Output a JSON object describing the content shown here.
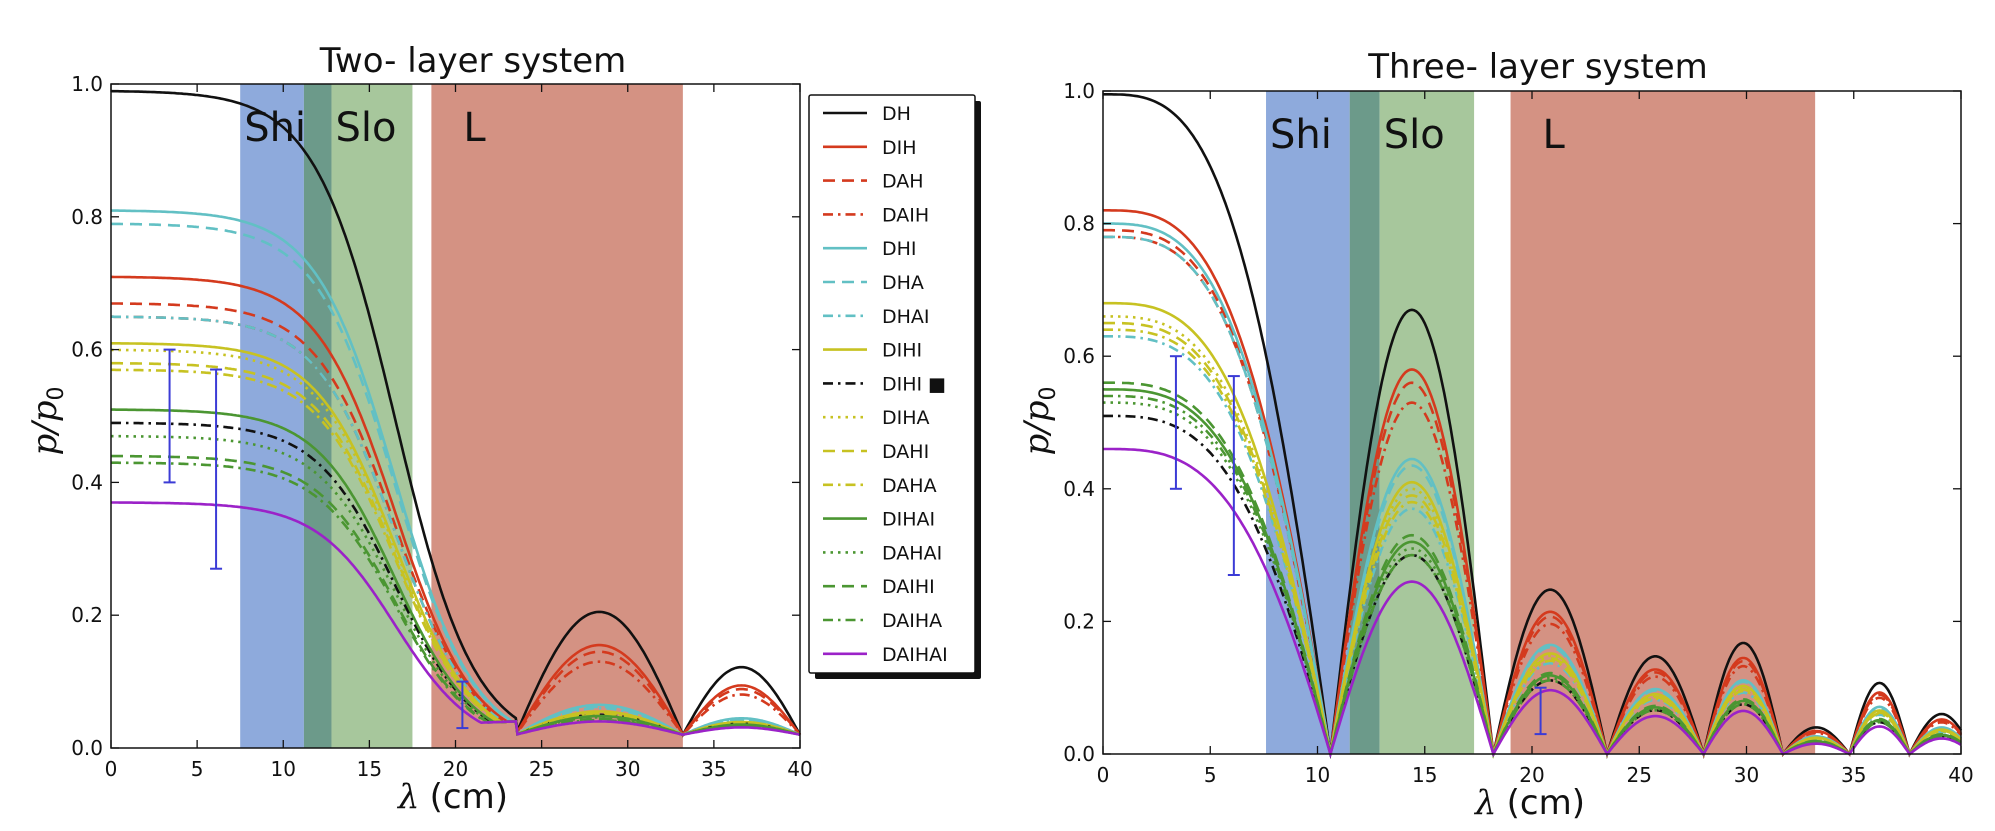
{
  "chart_data": [
    {
      "type": "line",
      "title": "Two- layer system",
      "xlabel_symbol": "λ",
      "xlabel_unit": "(cm)",
      "ylabel_symbol": "p",
      "ylabel_sub": "0",
      "xlim": [
        0,
        40
      ],
      "ylim": [
        0,
        1.0
      ],
      "xticks": [
        "0",
        "5",
        "10",
        "15",
        "20",
        "25",
        "30",
        "35",
        "40"
      ],
      "yticks": [
        "0.0",
        "0.2",
        "0.4",
        "0.6",
        "0.8",
        "1.0"
      ],
      "regions": [
        {
          "label": "Shi",
          "from": 7.5,
          "to": 11.2,
          "color": "#8eaadc"
        },
        {
          "label": "",
          "from": 11.2,
          "to": 12.8,
          "color": "#6c9a8a"
        },
        {
          "label": "Slo",
          "from": 12.8,
          "to": 17.5,
          "color": "#a7c79c"
        },
        {
          "label": "L",
          "from": 18.6,
          "to": 33.2,
          "color": "#d49283"
        }
      ],
      "error_bars": [
        {
          "x": 3.4,
          "low": 0.4,
          "high": 0.6
        },
        {
          "x": 6.1,
          "low": 0.27,
          "high": 0.57
        },
        {
          "x": 20.4,
          "low": 0.03,
          "high": 0.1
        }
      ],
      "legend_position": "outside-right",
      "series": [
        {
          "name": "DH",
          "color": "#111111",
          "dash": "solid",
          "start": 0.99,
          "hump": 0.185
        },
        {
          "name": "DIH",
          "color": "#d43a1e",
          "dash": "solid",
          "start": 0.71,
          "hump": 0.135
        },
        {
          "name": "DAH",
          "color": "#d43a1e",
          "dash": "dashed",
          "start": 0.67,
          "hump": 0.125
        },
        {
          "name": "DAIH",
          "color": "#d43a1e",
          "dash": "dashdot",
          "start": 0.65,
          "hump": 0.11
        },
        {
          "name": "DHI",
          "color": "#62c0c4",
          "dash": "solid",
          "start": 0.81,
          "hump": 0.045
        },
        {
          "name": "DHA",
          "color": "#62c0c4",
          "dash": "dashed",
          "start": 0.79,
          "hump": 0.042
        },
        {
          "name": "DHAI",
          "color": "#62c0c4",
          "dash": "dashdot",
          "start": 0.65,
          "hump": 0.04
        },
        {
          "name": "DIHI",
          "color": "#c7c222",
          "dash": "solid",
          "start": 0.61,
          "hump": 0.035
        },
        {
          "name": "DIHI ■",
          "color": "#111111",
          "dash": "dashdot",
          "start": 0.49,
          "hump": 0.03
        },
        {
          "name": "DIHA",
          "color": "#c7c222",
          "dash": "dotted",
          "start": 0.6,
          "hump": 0.033
        },
        {
          "name": "DAHI",
          "color": "#c7c222",
          "dash": "dashed",
          "start": 0.58,
          "hump": 0.032
        },
        {
          "name": "DAHA",
          "color": "#c7c222",
          "dash": "dashdot",
          "start": 0.57,
          "hump": 0.03
        },
        {
          "name": "DIHAI",
          "color": "#4b9632",
          "dash": "solid",
          "start": 0.51,
          "hump": 0.028
        },
        {
          "name": "DAHAI",
          "color": "#4b9632",
          "dash": "dotted",
          "start": 0.47,
          "hump": 0.026
        },
        {
          "name": "DAIHI",
          "color": "#4b9632",
          "dash": "dashed",
          "start": 0.44,
          "hump": 0.024
        },
        {
          "name": "DAIHA",
          "color": "#4b9632",
          "dash": "dashdot",
          "start": 0.43,
          "hump": 0.022
        },
        {
          "name": "DAIHAI",
          "color": "#9b22c8",
          "dash": "solid",
          "start": 0.37,
          "hump": 0.02
        }
      ]
    },
    {
      "type": "line",
      "title": "Three- layer system",
      "xlabel_symbol": "λ",
      "xlabel_unit": "(cm)",
      "ylabel_symbol": "p",
      "ylabel_sub": "0",
      "xlim": [
        0,
        40
      ],
      "ylim": [
        0,
        1.0
      ],
      "xticks": [
        "0",
        "5",
        "10",
        "15",
        "20",
        "25",
        "30",
        "35",
        "40"
      ],
      "yticks": [
        "0.0",
        "0.2",
        "0.4",
        "0.6",
        "0.8",
        "1.0"
      ],
      "regions": [
        {
          "label": "Shi",
          "from": 7.6,
          "to": 11.5,
          "color": "#8eaadc"
        },
        {
          "label": "",
          "from": 11.5,
          "to": 12.9,
          "color": "#6c9a8a"
        },
        {
          "label": "Slo",
          "from": 12.9,
          "to": 17.3,
          "color": "#a7c79c"
        },
        {
          "label": "L",
          "from": 19.0,
          "to": 33.2,
          "color": "#d49283"
        }
      ],
      "error_bars": [
        {
          "x": 3.4,
          "low": 0.4,
          "high": 0.6
        },
        {
          "x": 6.1,
          "low": 0.27,
          "high": 0.57
        },
        {
          "x": 20.4,
          "low": 0.03,
          "high": 0.1
        }
      ],
      "series": [
        {
          "name": "DH",
          "color": "#111111",
          "dash": "solid",
          "start": 0.995,
          "hump": 0.67
        },
        {
          "name": "DIH",
          "color": "#d43a1e",
          "dash": "solid",
          "start": 0.82,
          "hump": 0.58
        },
        {
          "name": "DAH",
          "color": "#d43a1e",
          "dash": "dashed",
          "start": 0.79,
          "hump": 0.56
        },
        {
          "name": "DAIH",
          "color": "#d43a1e",
          "dash": "dashdot",
          "start": 0.78,
          "hump": 0.53
        },
        {
          "name": "DHI",
          "color": "#62c0c4",
          "dash": "solid",
          "start": 0.8,
          "hump": 0.445
        },
        {
          "name": "DHA",
          "color": "#62c0c4",
          "dash": "dashed",
          "start": 0.78,
          "hump": 0.435
        },
        {
          "name": "DHAI",
          "color": "#62c0c4",
          "dash": "dashdot",
          "start": 0.63,
          "hump": 0.37
        },
        {
          "name": "DIHI",
          "color": "#c7c222",
          "dash": "solid",
          "start": 0.68,
          "hump": 0.41
        },
        {
          "name": "DIHI ■",
          "color": "#111111",
          "dash": "dashdot",
          "start": 0.51,
          "hump": 0.3
        },
        {
          "name": "DIHA",
          "color": "#c7c222",
          "dash": "dotted",
          "start": 0.66,
          "hump": 0.4
        },
        {
          "name": "DAHI",
          "color": "#c7c222",
          "dash": "dashed",
          "start": 0.65,
          "hump": 0.39
        },
        {
          "name": "DAHA",
          "color": "#c7c222",
          "dash": "dashdot",
          "start": 0.64,
          "hump": 0.38
        },
        {
          "name": "DIHAI",
          "color": "#4b9632",
          "dash": "solid",
          "start": 0.55,
          "hump": 0.32
        },
        {
          "name": "DAHAI",
          "color": "#4b9632",
          "dash": "dotted",
          "start": 0.53,
          "hump": 0.31
        },
        {
          "name": "DAIHI",
          "color": "#4b9632",
          "dash": "dashed",
          "start": 0.56,
          "hump": 0.33
        },
        {
          "name": "DAIHA",
          "color": "#4b9632",
          "dash": "dashdot",
          "start": 0.54,
          "hump": 0.3
        },
        {
          "name": "DAIHAI",
          "color": "#9b22c8",
          "dash": "solid",
          "start": 0.46,
          "hump": 0.26
        }
      ]
    }
  ]
}
